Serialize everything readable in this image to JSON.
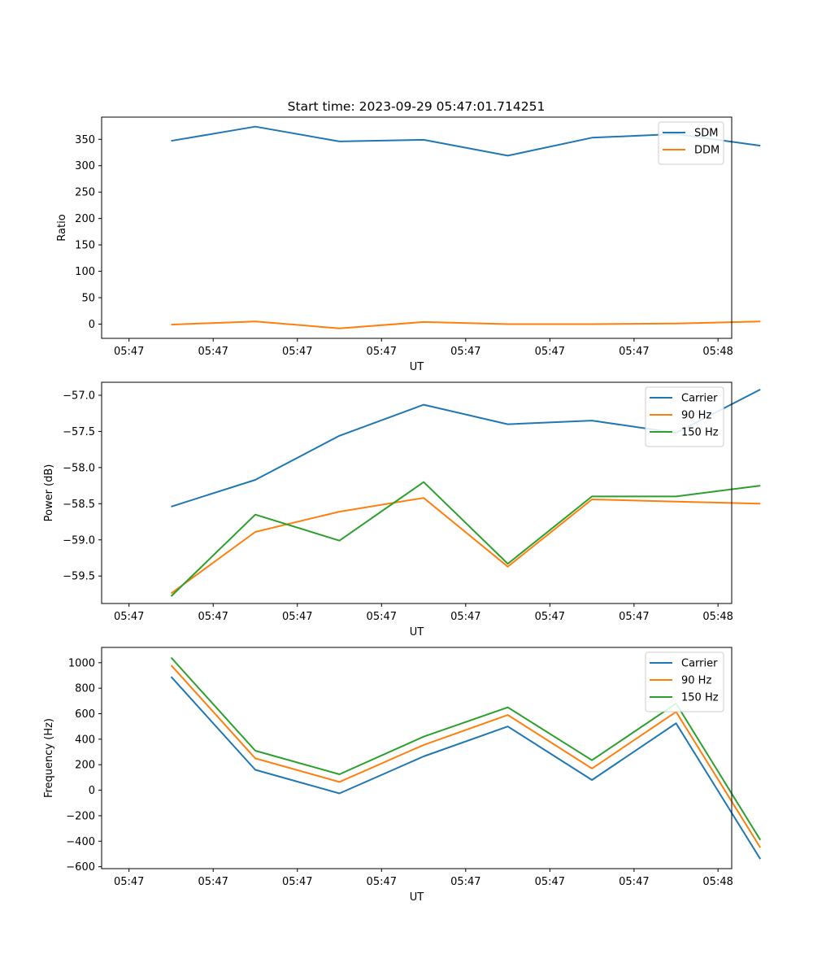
{
  "figure": {
    "title": "Start time: 2023-09-29 05:47:01.714251"
  },
  "colors": {
    "blue": "#1f77b4",
    "orange": "#ff7f0e",
    "green": "#2ca02c"
  },
  "chart_data": [
    {
      "type": "line",
      "title": "Start time: 2023-09-29 05:47:01.714251",
      "xlabel": "UT",
      "ylabel": "Ratio",
      "x_tick_labels": [
        "05:47",
        "05:47",
        "05:47",
        "05:47",
        "05:47",
        "05:47",
        "05:47"
      ],
      "x_tick_extra": "05:48",
      "x_index_range": [
        -0.4,
        8.8
      ],
      "x": [
        0.5,
        1.5,
        2.5,
        3.5,
        4.5,
        5.5,
        6.5,
        7.5
      ],
      "yticks": [
        0,
        50,
        100,
        150,
        200,
        250,
        300,
        350
      ],
      "ylim": [
        -27,
        392
      ],
      "legend": "upper right",
      "series": [
        {
          "name": "SDM",
          "color": "#1f77b4",
          "values": [
            347,
            374,
            346,
            349,
            319,
            353,
            360,
            338
          ]
        },
        {
          "name": "DDM",
          "color": "#ff7f0e",
          "values": [
            -1,
            5,
            -8,
            4,
            0,
            0,
            1,
            5
          ]
        }
      ]
    },
    {
      "type": "line",
      "title": "",
      "xlabel": "UT",
      "ylabel": "Power (dB)",
      "x_tick_labels": [
        "05:47",
        "05:47",
        "05:47",
        "05:47",
        "05:47",
        "05:47",
        "05:47"
      ],
      "x_tick_extra": "05:48",
      "x_index_range": [
        -0.4,
        8.8
      ],
      "x": [
        0.5,
        1.5,
        2.5,
        3.5,
        4.5,
        5.5,
        6.5,
        7.5
      ],
      "yticks": [
        -59.5,
        -59.0,
        -58.5,
        -58.0,
        -57.5,
        -57.0
      ],
      "ytick_labels": [
        "−59.5",
        "−59.0",
        "−58.5",
        "−58.0",
        "−57.5",
        "−57.0"
      ],
      "ylim": [
        -59.88,
        -56.82
      ],
      "legend": "upper right",
      "series": [
        {
          "name": "Carrier",
          "color": "#1f77b4",
          "values": [
            -58.54,
            -58.17,
            -57.56,
            -57.13,
            -57.4,
            -57.35,
            -57.52,
            -56.92
          ]
        },
        {
          "name": "90 Hz",
          "color": "#ff7f0e",
          "values": [
            -59.74,
            -58.89,
            -58.61,
            -58.42,
            -59.37,
            -58.44,
            -58.47,
            -58.5
          ]
        },
        {
          "name": "150 Hz",
          "color": "#2ca02c",
          "values": [
            -59.78,
            -58.65,
            -59.01,
            -58.2,
            -59.33,
            -58.4,
            -58.4,
            -58.25
          ]
        }
      ]
    },
    {
      "type": "line",
      "title": "",
      "xlabel": "UT",
      "ylabel": "Frequency (Hz)",
      "x_tick_labels": [
        "05:47",
        "05:47",
        "05:47",
        "05:47",
        "05:47",
        "05:47",
        "05:47"
      ],
      "x_tick_extra": "05:48",
      "x_index_range": [
        -0.4,
        8.8
      ],
      "x": [
        0.5,
        1.5,
        2.5,
        3.5,
        4.5,
        5.5,
        6.5,
        7.5
      ],
      "yticks": [
        -600,
        -400,
        -200,
        0,
        200,
        400,
        600,
        800,
        1000
      ],
      "ytick_labels": [
        "−600",
        "−400",
        "−200",
        "0",
        "200",
        "400",
        "600",
        "800",
        "1000"
      ],
      "ylim": [
        -615,
        1120
      ],
      "legend": "upper right",
      "series": [
        {
          "name": "Carrier",
          "color": "#1f77b4",
          "values": [
            890,
            160,
            -25,
            265,
            500,
            80,
            525,
            -540
          ]
        },
        {
          "name": "90 Hz",
          "color": "#ff7f0e",
          "values": [
            980,
            250,
            65,
            355,
            590,
            170,
            615,
            -450
          ]
        },
        {
          "name": "150 Hz",
          "color": "#2ca02c",
          "values": [
            1040,
            310,
            125,
            420,
            650,
            235,
            680,
            -390
          ]
        }
      ]
    }
  ]
}
